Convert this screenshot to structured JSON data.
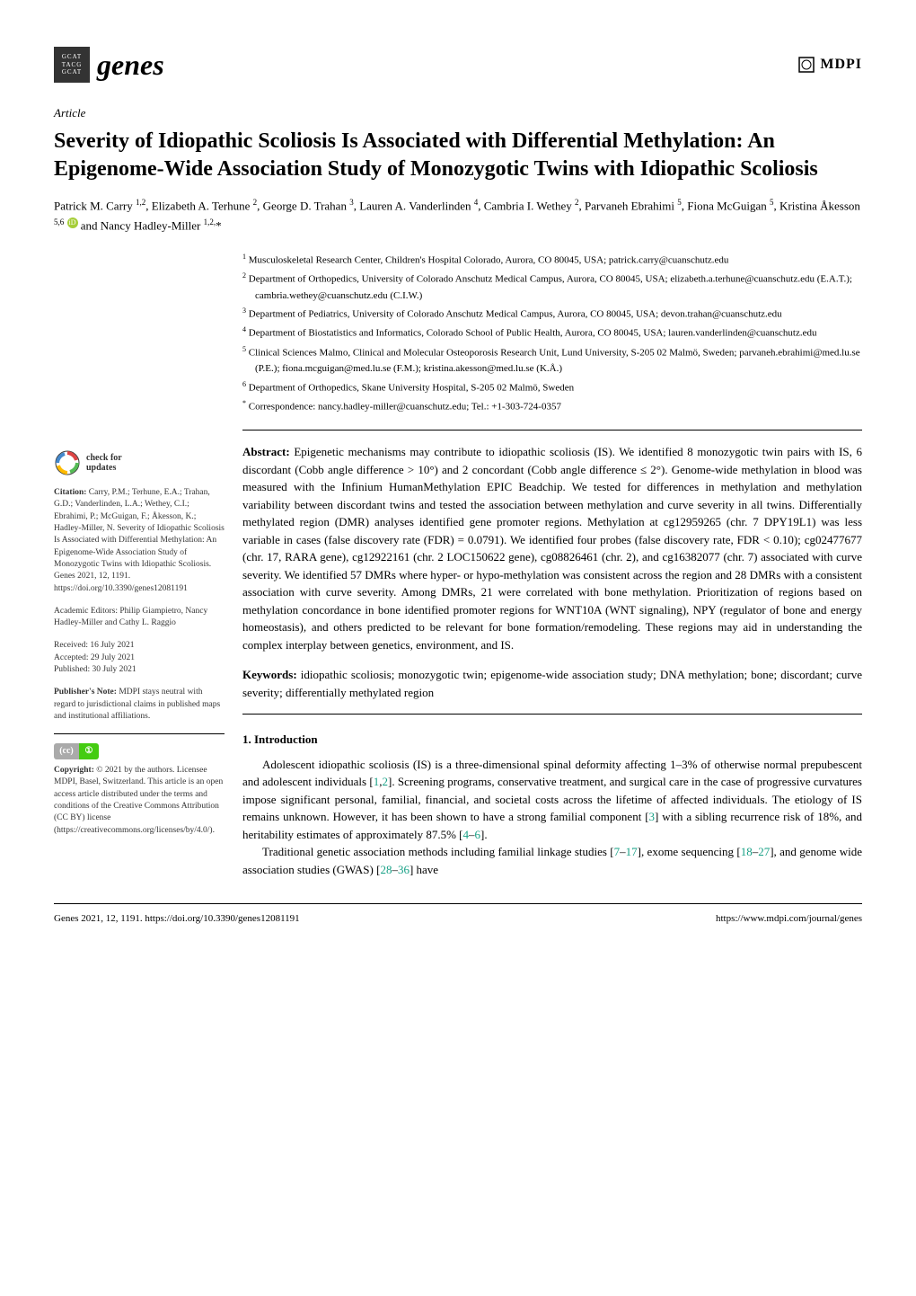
{
  "journal": {
    "logo_letters": "GCAT\nTACG\nGCAT",
    "name": "genes",
    "publisher": "MDPI"
  },
  "article": {
    "type": "Article",
    "title": "Severity of Idiopathic Scoliosis Is Associated with Differential Methylation: An Epigenome-Wide Association Study of Monozygotic Twins with Idiopathic Scoliosis",
    "authors_html": "Patrick M. Carry <sup>1,2</sup>, Elizabeth A. Terhune <sup>2</sup>, George D. Trahan <sup>3</sup>, Lauren A. Vanderlinden <sup>4</sup>, Cambria I. Wethey <sup>2</sup>, Parvaneh Ebrahimi <sup>5</sup>, Fiona McGuigan <sup>5</sup>, Kristina Åkesson <sup>5,6</sup> <span class='orcid'>iD</span> and Nancy Hadley-Miller <sup>1,2,</sup>*",
    "affiliations": [
      {
        "n": "1",
        "text": "Musculoskeletal Research Center, Children's Hospital Colorado, Aurora, CO 80045, USA; patrick.carry@cuanschutz.edu"
      },
      {
        "n": "2",
        "text": "Department of Orthopedics, University of Colorado Anschutz Medical Campus, Aurora, CO 80045, USA; elizabeth.a.terhune@cuanschutz.edu (E.A.T.); cambria.wethey@cuanschutz.edu (C.I.W.)"
      },
      {
        "n": "3",
        "text": "Department of Pediatrics, University of Colorado Anschutz Medical Campus, Aurora, CO 80045, USA; devon.trahan@cuanschutz.edu"
      },
      {
        "n": "4",
        "text": "Department of Biostatistics and Informatics, Colorado School of Public Health, Aurora, CO 80045, USA; lauren.vanderlinden@cuanschutz.edu"
      },
      {
        "n": "5",
        "text": "Clinical Sciences Malmo, Clinical and Molecular Osteoporosis Research Unit, Lund University, S-205 02 Malmö, Sweden; parvaneh.ebrahimi@med.lu.se (P.E.); fiona.mcguigan@med.lu.se (F.M.); kristina.akesson@med.lu.se (K.Å.)"
      },
      {
        "n": "6",
        "text": "Department of Orthopedics, Skane University Hospital, S-205 02 Malmö, Sweden"
      },
      {
        "n": "*",
        "text": "Correspondence: nancy.hadley-miller@cuanschutz.edu; Tel.: +1-303-724-0357"
      }
    ],
    "abstract_label": "Abstract:",
    "abstract": "Epigenetic mechanisms may contribute to idiopathic scoliosis (IS). We identified 8 monozygotic twin pairs with IS, 6 discordant (Cobb angle difference > 10°) and 2 concordant (Cobb angle difference ≤ 2°). Genome-wide methylation in blood was measured with the Infinium HumanMethylation EPIC Beadchip. We tested for differences in methylation and methylation variability between discordant twins and tested the association between methylation and curve severity in all twins. Differentially methylated region (DMR) analyses identified gene promoter regions. Methylation at cg12959265 (chr. 7 DPY19L1) was less variable in cases (false discovery rate (FDR) = 0.0791). We identified four probes (false discovery rate, FDR < 0.10); cg02477677 (chr. 17, RARA gene), cg12922161 (chr. 2 LOC150622 gene), cg08826461 (chr. 2), and cg16382077 (chr. 7) associated with curve severity. We identified 57 DMRs where hyper- or hypo-methylation was consistent across the region and 28 DMRs with a consistent association with curve severity. Among DMRs, 21 were correlated with bone methylation. Prioritization of regions based on methylation concordance in bone identified promoter regions for WNT10A (WNT signaling), NPY (regulator of bone and energy homeostasis), and others predicted to be relevant for bone formation/remodeling. These regions may aid in understanding the complex interplay between genetics, environment, and IS.",
    "keywords_label": "Keywords:",
    "keywords": "idiopathic scoliosis; monozygotic twin; epigenome-wide association study; DNA methylation; bone; discordant; curve severity; differentially methylated region"
  },
  "sidebar": {
    "check_updates": "check for\nupdates",
    "citation_label": "Citation:",
    "citation": "Carry, P.M.; Terhune, E.A.; Trahan, G.D.; Vanderlinden, L.A.; Wethey, C.I.; Ebrahimi, P.; McGuigan, F.; Åkesson, K.; Hadley-Miller, N. Severity of Idiopathic Scoliosis Is Associated with Differential Methylation: An Epigenome-Wide Association Study of Monozygotic Twins with Idiopathic Scoliosis. Genes 2021, 12, 1191. https://doi.org/10.3390/genes12081191",
    "editors_label": "Academic Editors:",
    "editors": "Philip Giampietro, Nancy Hadley-Miller and Cathy L. Raggio",
    "received_label": "Received:",
    "received": "16 July 2021",
    "accepted_label": "Accepted:",
    "accepted": "29 July 2021",
    "published_label": "Published:",
    "published": "30 July 2021",
    "note_label": "Publisher's Note:",
    "note": "MDPI stays neutral with regard to jurisdictional claims in published maps and institutional affiliations.",
    "copyright_label": "Copyright:",
    "copyright": "© 2021 by the authors. Licensee MDPI, Basel, Switzerland. This article is an open access article distributed under the terms and conditions of the Creative Commons Attribution (CC BY) license (https://creativecommons.org/licenses/by/4.0/)."
  },
  "intro": {
    "heading": "1. Introduction",
    "p1_a": "Adolescent idiopathic scoliosis (IS) is a three-dimensional spinal deformity affecting 1–3% of otherwise normal prepubescent and adolescent individuals [",
    "p1_ref1": "1",
    "p1_b": ",",
    "p1_ref2": "2",
    "p1_c": "]. Screening programs, conservative treatment, and surgical care in the case of progressive curvatures impose significant personal, familial, financial, and societal costs across the lifetime of affected individuals. The etiology of IS remains unknown. However, it has been shown to have a strong familial component [",
    "p1_ref3": "3",
    "p1_d": "] with a sibling recurrence risk of 18%, and heritability estimates of approximately 87.5% [",
    "p1_ref4": "4",
    "p1_e": "–",
    "p1_ref5": "6",
    "p1_f": "].",
    "p2_a": "Traditional genetic association methods including familial linkage studies [",
    "p2_ref1": "7",
    "p2_b": "–",
    "p2_ref2": "17",
    "p2_c": "], exome sequencing [",
    "p2_ref3": "18",
    "p2_d": "–",
    "p2_ref4": "27",
    "p2_e": "], and genome wide association studies (GWAS) [",
    "p2_ref5": "28",
    "p2_f": "–",
    "p2_ref6": "36",
    "p2_g": "] have"
  },
  "footer": {
    "left": "Genes 2021, 12, 1191. https://doi.org/10.3390/genes12081191",
    "right": "https://www.mdpi.com/journal/genes"
  },
  "colors": {
    "text": "#000000",
    "ref_link": "#16a085",
    "orcid": "#a6ce39"
  }
}
